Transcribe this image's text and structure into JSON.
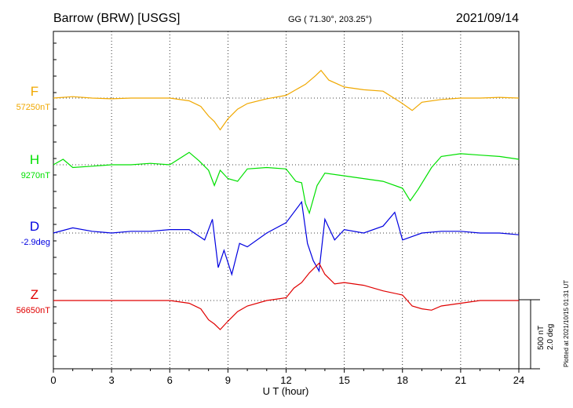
{
  "header": {
    "station": "Barrow (BRW)  [USGS]",
    "coords": "GG ( 71.30°, 203.25°)",
    "date": "2021/09/14"
  },
  "plotted_note": "Plotted at 2021/10/15 01:31  UT",
  "scale": {
    "nt": "500 nT",
    "deg": "2.0 deg"
  },
  "colors": {
    "F": "#f0a800",
    "H": "#00e000",
    "D": "#0000e0",
    "Z": "#e00000",
    "axis": "#000000"
  },
  "chart_data": {
    "type": "line",
    "title": "Barrow (BRW)  [USGS]",
    "xlabel": "U T (hour)",
    "ylabel": "",
    "xlim": [
      0,
      24
    ],
    "x_ticks": [
      "0",
      "3",
      "6",
      "9",
      "12",
      "15",
      "18",
      "21",
      "24"
    ],
    "grid": true,
    "series": [
      {
        "name": "F",
        "baseline_label": "57250nT",
        "unit": "nT",
        "x": [
          0,
          1,
          2,
          3,
          4,
          5,
          6,
          7,
          7.6,
          8.0,
          8.3,
          8.6,
          9.0,
          9.5,
          10,
          11,
          12,
          12.5,
          13,
          13.5,
          13.8,
          14.2,
          15,
          16,
          17,
          18,
          18.5,
          19,
          20,
          21,
          22,
          23,
          24
        ],
        "values": [
          0,
          10,
          0,
          -5,
          0,
          0,
          0,
          -20,
          -60,
          -130,
          -170,
          -230,
          -150,
          -80,
          -40,
          -5,
          20,
          60,
          100,
          160,
          200,
          130,
          80,
          60,
          50,
          -40,
          -90,
          -30,
          -10,
          0,
          0,
          5,
          0
        ]
      },
      {
        "name": "H",
        "baseline_label": "9270nT",
        "unit": "nT",
        "x": [
          0,
          0.5,
          1,
          2,
          3,
          4,
          5,
          6,
          7,
          7.5,
          8,
          8.3,
          8.6,
          9,
          9.5,
          10,
          11,
          12,
          12.5,
          12.8,
          13,
          13.2,
          13.6,
          14,
          15,
          16,
          17,
          18,
          18.4,
          18.8,
          19.5,
          20,
          21,
          22,
          23,
          24
        ],
        "values": [
          0,
          40,
          -20,
          -10,
          0,
          0,
          10,
          0,
          90,
          30,
          -40,
          -150,
          -40,
          -100,
          -120,
          -30,
          -20,
          -30,
          -120,
          -130,
          -280,
          -350,
          -150,
          -60,
          -80,
          -100,
          -120,
          -170,
          -260,
          -180,
          -20,
          60,
          80,
          70,
          60,
          40
        ]
      },
      {
        "name": "D",
        "baseline_label": "-2.9deg",
        "unit": "deg",
        "x": [
          0,
          1,
          2,
          3,
          4,
          5,
          6,
          7,
          7.8,
          8.2,
          8.5,
          8.8,
          9.2,
          9.6,
          10,
          11,
          12,
          12.8,
          13.1,
          13.4,
          13.7,
          14,
          14.5,
          15,
          16,
          17,
          17.6,
          18,
          18.5,
          19,
          20,
          21,
          22,
          23,
          24
        ],
        "values": [
          0,
          0.15,
          0.05,
          0,
          0.05,
          0.05,
          0.1,
          0.1,
          -0.2,
          0.4,
          -1.0,
          -0.5,
          -1.2,
          -0.3,
          -0.4,
          0,
          0.3,
          0.9,
          -0.3,
          -0.8,
          -1.1,
          0.4,
          -0.2,
          0.1,
          0,
          0.2,
          0.6,
          -0.2,
          -0.1,
          0,
          0.05,
          0.05,
          0,
          0,
          -0.05
        ]
      },
      {
        "name": "Z",
        "baseline_label": "56650nT",
        "unit": "nT",
        "x": [
          0,
          1,
          2,
          3,
          4,
          5,
          6,
          7,
          7.6,
          8.0,
          8.3,
          8.6,
          9.0,
          9.5,
          10,
          11,
          12,
          12.4,
          12.8,
          13.2,
          13.7,
          14,
          14.5,
          15,
          16,
          17,
          18,
          18.5,
          19,
          19.5,
          20,
          21,
          22,
          23,
          24
        ],
        "values": [
          0,
          0,
          0,
          0,
          0,
          0,
          0,
          -20,
          -60,
          -140,
          -170,
          -210,
          -150,
          -80,
          -40,
          0,
          20,
          90,
          130,
          200,
          270,
          190,
          120,
          130,
          110,
          70,
          40,
          -40,
          -60,
          -70,
          -40,
          -20,
          0,
          0,
          0
        ]
      }
    ]
  }
}
